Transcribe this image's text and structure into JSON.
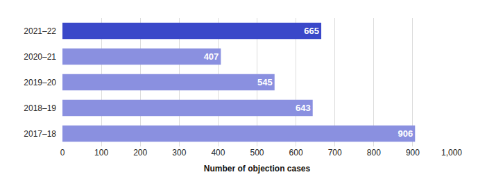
{
  "chart_data": {
    "type": "bar",
    "orientation": "horizontal",
    "x_label": "Number of objection cases",
    "categories": [
      "2021–22",
      "2020–21",
      "2019–20",
      "2018–19",
      "2017–18"
    ],
    "values": [
      665,
      407,
      545,
      643,
      906
    ],
    "colors": [
      "#3a48c9",
      "#8a90e0",
      "#8a90e0",
      "#8a90e0",
      "#8a90e0"
    ],
    "xlim": [
      0,
      1000
    ],
    "xticks": [
      0,
      100,
      200,
      300,
      400,
      500,
      600,
      700,
      800,
      900,
      {
        "value": 1000,
        "label": "1,000"
      }
    ],
    "grid": true,
    "data_labels": true
  }
}
